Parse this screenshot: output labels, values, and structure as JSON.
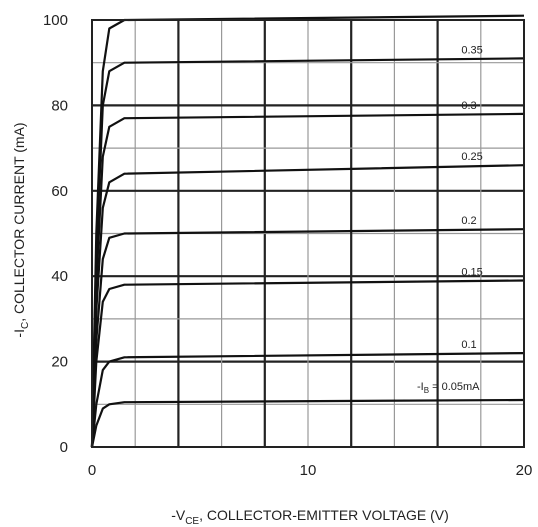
{
  "chart_data": {
    "type": "line",
    "title": "",
    "xlabel": {
      "prefix": "-V",
      "sub": "CE",
      "suffix": ", COLLECTOR-EMITTER VOLTAGE (V)"
    },
    "ylabel": {
      "prefix": "-I",
      "sub": "C",
      "suffix": ", COLLECTOR CURRENT (mA)"
    },
    "xlim": [
      0,
      20
    ],
    "ylim": [
      0,
      100
    ],
    "x_ticks": [
      "0",
      "10",
      "20"
    ],
    "y_ticks": [
      "0",
      "20",
      "40",
      "60",
      "80",
      "100"
    ],
    "grid": true,
    "x": [
      0,
      0.2,
      0.5,
      0.8,
      1.5,
      20
    ],
    "series": [
      {
        "name": "0.05",
        "values": [
          0,
          5,
          9,
          10,
          10.5,
          11
        ]
      },
      {
        "name": "0.1",
        "values": [
          0,
          10,
          18,
          20,
          21,
          22
        ]
      },
      {
        "name": "0.15",
        "values": [
          0,
          20,
          34,
          37,
          38,
          39
        ]
      },
      {
        "name": "0.2",
        "values": [
          0,
          25,
          44,
          49,
          50,
          51
        ]
      },
      {
        "name": "0.25",
        "values": [
          0,
          32,
          56,
          62,
          64,
          66
        ]
      },
      {
        "name": "0.3",
        "values": [
          0,
          38,
          68,
          75,
          77,
          78
        ]
      },
      {
        "name": "0.35",
        "values": [
          0,
          45,
          80,
          88,
          90,
          91
        ]
      },
      {
        "name": "",
        "values": [
          0,
          50,
          88,
          98,
          100,
          101
        ]
      }
    ],
    "curve_labels": [
      {
        "series": "0.35",
        "text": "0.35"
      },
      {
        "series": "0.3",
        "text": "0.3"
      },
      {
        "series": "0.25",
        "text": "0.25"
      },
      {
        "series": "0.2",
        "text": "0.2"
      },
      {
        "series": "0.15",
        "text": "0.15"
      },
      {
        "series": "0.1",
        "text": "0.1"
      }
    ],
    "ib_label": {
      "prefix": "-I",
      "sub": "B",
      "suffix": " = 0.05mA"
    }
  }
}
